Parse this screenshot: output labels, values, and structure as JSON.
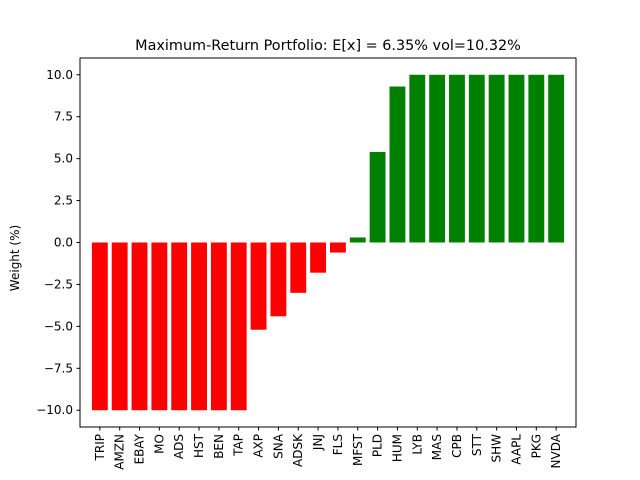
{
  "chart_data": {
    "type": "bar",
    "title": "Maximum-Return Portfolio: E[x] = 6.35% vol=10.32%",
    "xlabel": "",
    "ylabel": "Weight (%)",
    "ylim": [
      -11.0,
      11.0
    ],
    "yticks": [
      -10.0,
      -7.5,
      -5.0,
      -2.5,
      0.0,
      2.5,
      5.0,
      7.5,
      10.0
    ],
    "ytick_labels": [
      "−10.0",
      "−7.5",
      "−5.0",
      "−2.5",
      "0.0",
      "2.5",
      "5.0",
      "7.5",
      "10.0"
    ],
    "grid": false,
    "categories": [
      "TRIP",
      "AMZN",
      "EBAY",
      "MO",
      "ADS",
      "HST",
      "BEN",
      "TAP",
      "AXP",
      "SNA",
      "ADSK",
      "JNJ",
      "FLS",
      "MFST",
      "PLD",
      "HUM",
      "LYB",
      "MAS",
      "CPB",
      "STT",
      "SHW",
      "AAPL",
      "PKG",
      "NVDA"
    ],
    "values": [
      -10.0,
      -10.0,
      -10.0,
      -10.0,
      -10.0,
      -10.0,
      -10.0,
      -10.0,
      -5.2,
      -4.4,
      -3.0,
      -1.8,
      -0.6,
      0.3,
      5.4,
      9.3,
      10.0,
      10.0,
      10.0,
      10.0,
      10.0,
      10.0,
      10.0,
      10.0
    ],
    "colors": {
      "negative": "#ff0000",
      "positive": "#008000"
    }
  }
}
